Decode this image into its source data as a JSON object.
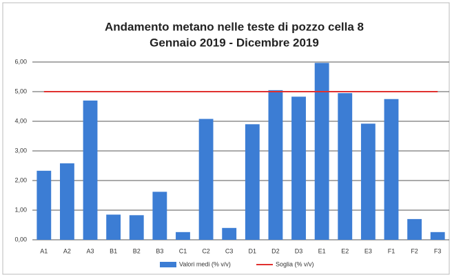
{
  "chart_data": {
    "type": "bar",
    "title": [
      "Andamento metano nelle teste di pozzo cella 8",
      "Gennaio 2019 - Dicembre 2019"
    ],
    "categories": [
      "A1",
      "A2",
      "A3",
      "B1",
      "B2",
      "B3",
      "C1",
      "C2",
      "C3",
      "D1",
      "D2",
      "D3",
      "E1",
      "E2",
      "E3",
      "F1",
      "F2",
      "F3"
    ],
    "series": [
      {
        "name": "Valori medi (% v/v)",
        "color": "#3c7dd4",
        "type": "bar",
        "values": [
          2.33,
          2.58,
          4.7,
          0.85,
          0.83,
          1.62,
          0.26,
          4.08,
          0.4,
          3.9,
          5.05,
          4.83,
          5.97,
          4.95,
          3.92,
          4.75,
          0.7,
          0.26
        ]
      },
      {
        "name": "Soglia (% v/v)",
        "color": "#e0302e",
        "type": "line",
        "values": [
          5,
          5,
          5,
          5,
          5,
          5,
          5,
          5,
          5,
          5,
          5,
          5,
          5,
          5,
          5,
          5,
          5,
          5
        ]
      }
    ],
    "ylim": [
      0,
      6
    ],
    "yticks": [
      {
        "value": 0,
        "label": "0,00"
      },
      {
        "value": 1,
        "label": "1,00"
      },
      {
        "value": 2,
        "label": "2,00"
      },
      {
        "value": 3,
        "label": "3,00"
      },
      {
        "value": 4,
        "label": "4,00"
      },
      {
        "value": 5,
        "label": "5,00"
      },
      {
        "value": 6,
        "label": "6,00"
      }
    ],
    "grid": true,
    "legend": "bottom"
  }
}
